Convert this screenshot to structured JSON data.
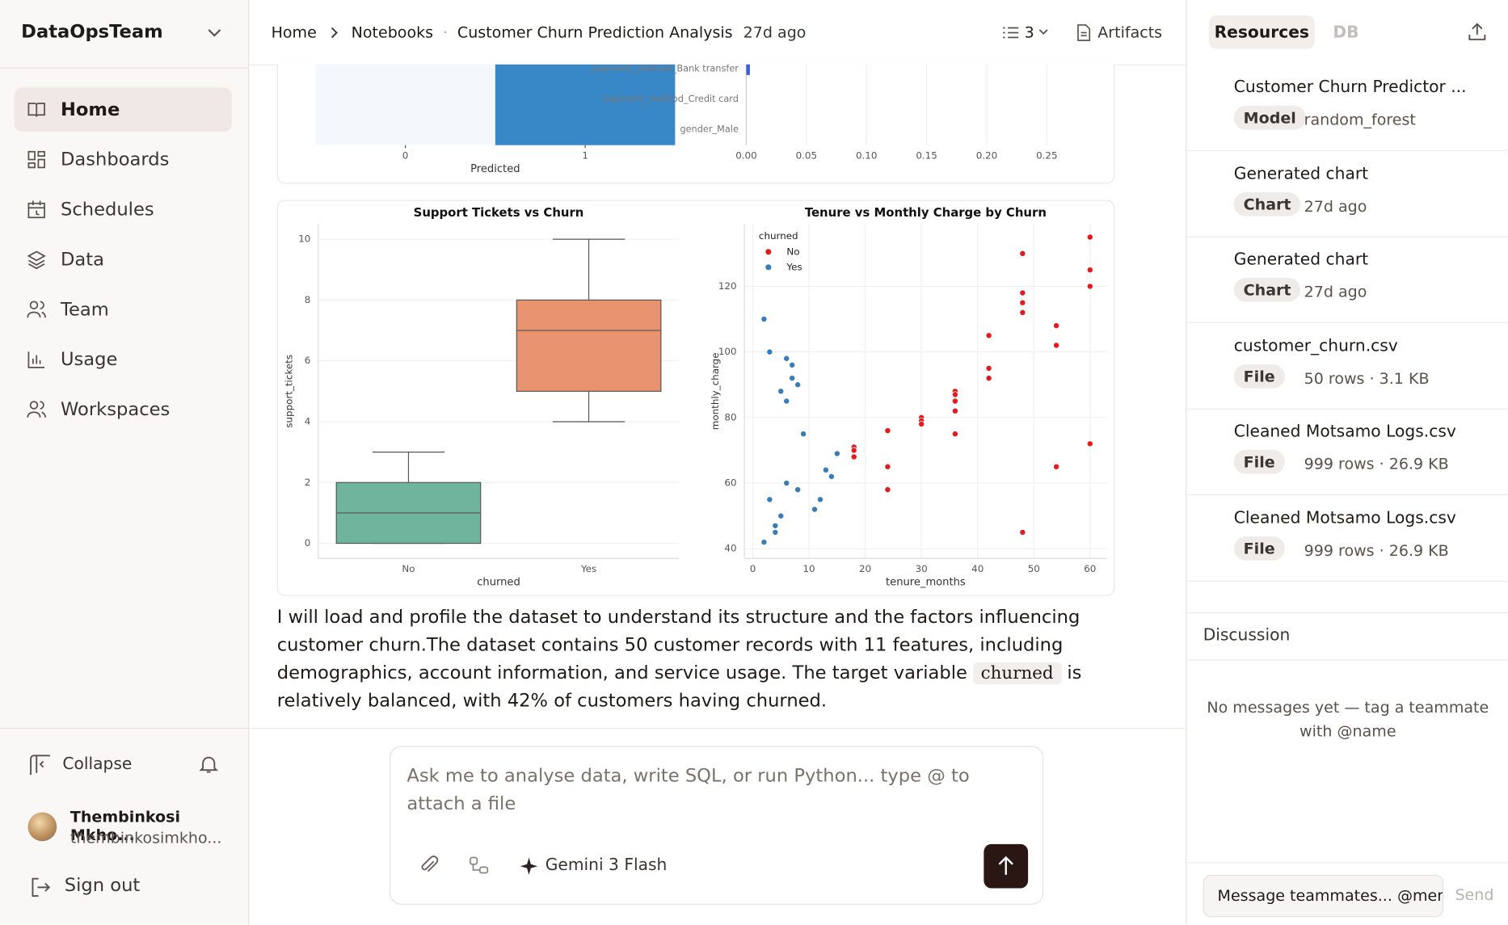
{
  "sidebar": {
    "workspace": "DataOpsTeam",
    "nav": [
      "Home",
      "Dashboards",
      "Schedules",
      "Data",
      "Team",
      "Usage",
      "Workspaces"
    ],
    "collapse": "Collapse",
    "user_name": "Thembinkosi Mkho...",
    "user_email": "thembinkosimkho...",
    "sign_out": "Sign out"
  },
  "header": {
    "breadcrumb": [
      "Home",
      "Notebooks",
      "Customer Churn Prediction Analysis"
    ],
    "updated": "27d ago",
    "outline_count": 3,
    "artifacts": "Artifacts"
  },
  "chart_data": [
    {
      "type": "heatmap",
      "colors": [
        "#f4f8fd",
        "#3887c6"
      ],
      "xlim": [
        -0.5,
        1.5
      ],
      "xticks": [
        0,
        1
      ],
      "xlabel": "Predicted"
    },
    {
      "type": "barh",
      "categories": [
        "payment_method_Bank transfer",
        "payment_method_Credit card",
        "gender_Male"
      ],
      "values": [
        0.003,
        0,
        0
      ],
      "color": "#3a5fd9",
      "xlim": [
        0,
        0.3
      ],
      "xticks": [
        {
          "value": 0,
          "label": "0.00"
        },
        {
          "value": 0.05,
          "label": "0.05"
        },
        {
          "value": 0.1,
          "label": "0.10"
        },
        {
          "value": 0.15,
          "label": "0.15"
        },
        {
          "value": 0.2,
          "label": "0.20"
        },
        {
          "value": 0.25,
          "label": "0.25"
        }
      ],
      "grid": true
    },
    {
      "type": "box",
      "title": "Support Tickets vs Churn",
      "categories": [
        "No",
        "Yes"
      ],
      "boxes": [
        {
          "min": 0,
          "q1": 0,
          "median": 1,
          "q3": 2,
          "max": 3
        },
        {
          "min": 4,
          "q1": 5,
          "median": 7,
          "q3": 8,
          "max": 10
        }
      ],
      "colors": [
        "#6fb59d",
        "#e8926f"
      ],
      "ylim": [
        -0.5,
        10.5
      ],
      "yticks": [
        0,
        2,
        4,
        6,
        8,
        10
      ],
      "xlabel": "churned",
      "ylabel": "support_tickets",
      "grid": true
    },
    {
      "type": "scatter",
      "title": "Tenure vs Monthly Charge by Churn",
      "legend_title": "churned",
      "legend": "upper left",
      "xlabel": "tenure_months",
      "ylabel": "monthly_charge",
      "xlim": [
        -1.5,
        63
      ],
      "ylim": [
        37,
        139
      ],
      "xticks": [
        0,
        10,
        20,
        30,
        40,
        50,
        60
      ],
      "yticks": [
        40,
        60,
        80,
        100,
        120
      ],
      "grid": true,
      "series": [
        {
          "name": "No",
          "color": "#e41a1c",
          "x": [
            18,
            18,
            18,
            24,
            24,
            24,
            30,
            30,
            30,
            36,
            36,
            36,
            36,
            36,
            42,
            42,
            42,
            48,
            48,
            48,
            48,
            48,
            54,
            54,
            54,
            60,
            60,
            60,
            60
          ],
          "y": [
            71,
            70,
            68,
            76,
            65,
            58,
            80,
            79,
            78,
            88,
            87,
            85,
            82,
            75,
            105,
            95,
            92,
            130,
            118,
            115,
            112,
            45,
            108,
            102,
            65,
            135,
            125,
            120,
            72
          ]
        },
        {
          "name": "Yes",
          "color": "#377eb8",
          "x": [
            2,
            3,
            6,
            7,
            5,
            7,
            8,
            6,
            9,
            2,
            4,
            4,
            5,
            3,
            6,
            8,
            11,
            12,
            13,
            14,
            15
          ],
          "y": [
            110,
            100,
            98,
            96,
            88,
            92,
            90,
            85,
            75,
            42,
            47,
            45,
            50,
            55,
            60,
            58,
            52,
            55,
            64,
            62,
            69
          ]
        }
      ]
    }
  ],
  "message": {
    "parts": [
      "I will load and profile the dataset to understand its structure and the factors influencing customer churn.The dataset contains 50 customer records with 11 features, including demographics, account information, and service usage. The target variable ",
      "churned",
      " is relatively balanced, with 42% of customers having churned."
    ]
  },
  "composer": {
    "placeholder": "Ask me to analyse data, write SQL, or run Python... type @ to attach a file",
    "model": "Gemini 3 Flash"
  },
  "resources": {
    "tabs": [
      "Resources",
      "DB"
    ],
    "items": [
      {
        "title": "Customer Churn Predictor ...",
        "tag": "Model",
        "meta": "random_forest"
      },
      {
        "title": "Generated chart",
        "tag": "Chart",
        "meta": "27d ago"
      },
      {
        "title": "Generated chart",
        "tag": "Chart",
        "meta": "27d ago"
      },
      {
        "title": "customer_churn.csv",
        "tag": "File",
        "meta": "50 rows · 3.1 KB"
      },
      {
        "title": "Cleaned Motsamo Logs.csv",
        "tag": "File",
        "meta": "999 rows · 26.9 KB"
      },
      {
        "title": "Cleaned Motsamo Logs.csv",
        "tag": "File",
        "meta": "999 rows · 26.9 KB"
      }
    ]
  },
  "discussion": {
    "title": "Discussion",
    "empty": "No messages yet — tag a teammate with @name",
    "input": "Message teammates... @men",
    "send": "Send"
  }
}
